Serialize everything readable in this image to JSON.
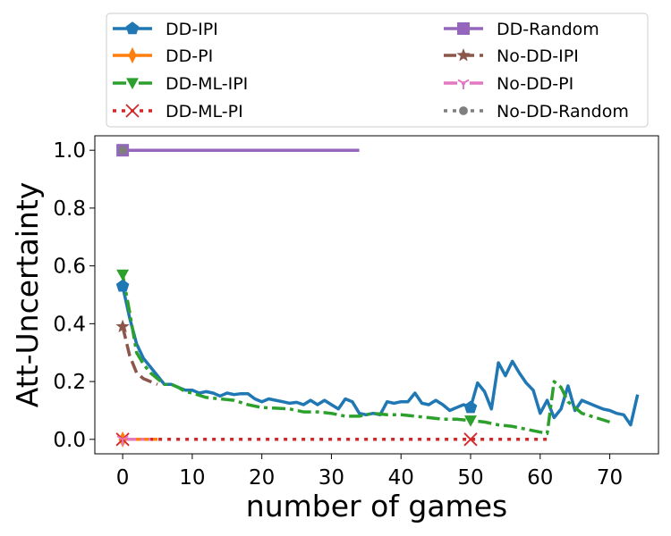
{
  "chart_data": {
    "type": "line",
    "title": "",
    "xlabel": "number of games",
    "ylabel": "Att-Uncertainty",
    "xlim": [
      -4,
      77
    ],
    "ylim": [
      -0.05,
      1.05
    ],
    "xticks": [
      0,
      10,
      20,
      30,
      40,
      50,
      60,
      70
    ],
    "yticks": [
      0.0,
      0.2,
      0.4,
      0.6,
      0.8,
      1.0
    ],
    "xtick_labels": [
      "0",
      "10",
      "20",
      "30",
      "40",
      "50",
      "60",
      "70"
    ],
    "ytick_labels": [
      "0.0",
      "0.2",
      "0.4",
      "0.6",
      "0.8",
      "1.0"
    ],
    "grid": false,
    "legend_placement": "top, above plot, two columns",
    "series": [
      {
        "name": "DD-IPI",
        "color": "#1f77b4",
        "linestyle": "solid",
        "marker": "pentagon",
        "marker_every": 50,
        "x": [
          0,
          1,
          2,
          3,
          4,
          5,
          6,
          7,
          8,
          9,
          10,
          11,
          12,
          13,
          14,
          15,
          16,
          17,
          18,
          19,
          20,
          21,
          22,
          23,
          24,
          25,
          26,
          27,
          28,
          29,
          30,
          31,
          32,
          33,
          34,
          35,
          36,
          37,
          38,
          39,
          40,
          41,
          42,
          43,
          44,
          45,
          46,
          47,
          48,
          49,
          50,
          51,
          52,
          53,
          54,
          55,
          56,
          57,
          58,
          59,
          60,
          61,
          62,
          63,
          64,
          65,
          66,
          67,
          68,
          69,
          70,
          71,
          72,
          73,
          74
        ],
        "y": [
          0.53,
          0.42,
          0.33,
          0.28,
          0.25,
          0.22,
          0.19,
          0.19,
          0.18,
          0.17,
          0.17,
          0.16,
          0.165,
          0.16,
          0.15,
          0.16,
          0.155,
          0.158,
          0.158,
          0.14,
          0.13,
          0.14,
          0.135,
          0.13,
          0.125,
          0.128,
          0.12,
          0.135,
          0.12,
          0.135,
          0.12,
          0.105,
          0.14,
          0.13,
          0.09,
          0.085,
          0.09,
          0.085,
          0.13,
          0.125,
          0.13,
          0.13,
          0.16,
          0.125,
          0.12,
          0.135,
          0.12,
          0.1,
          0.11,
          0.12,
          0.11,
          0.195,
          0.165,
          0.105,
          0.265,
          0.22,
          0.27,
          0.23,
          0.195,
          0.17,
          0.09,
          0.135,
          0.075,
          0.105,
          0.185,
          0.1,
          0.135,
          0.125,
          0.115,
          0.105,
          0.1,
          0.09,
          0.085,
          0.05,
          0.155
        ]
      },
      {
        "name": "DD-PI",
        "color": "#ff7f0e",
        "linestyle": "solid",
        "marker": "thin-diamond",
        "marker_every": 50,
        "x": [
          0,
          1,
          2,
          3,
          4,
          5
        ],
        "y": [
          0,
          0,
          0,
          0,
          0,
          0
        ]
      },
      {
        "name": "DD-ML-IPI",
        "color": "#2ca02c",
        "linestyle": "dashdot",
        "marker": "triangle-down",
        "marker_every": 50,
        "x": [
          0,
          1,
          2,
          3,
          4,
          5,
          6,
          7,
          8,
          9,
          10,
          12,
          14,
          16,
          18,
          20,
          22,
          24,
          26,
          28,
          30,
          32,
          34,
          36,
          38,
          40,
          42,
          44,
          46,
          48,
          50,
          52,
          54,
          56,
          58,
          60,
          61,
          62,
          63,
          64,
          66,
          68,
          70
        ],
        "y": [
          0.57,
          0.44,
          0.3,
          0.26,
          0.23,
          0.21,
          0.19,
          0.19,
          0.18,
          0.165,
          0.16,
          0.145,
          0.14,
          0.135,
          0.12,
          0.11,
          0.108,
          0.105,
          0.095,
          0.095,
          0.09,
          0.08,
          0.08,
          0.09,
          0.085,
          0.085,
          0.08,
          0.075,
          0.07,
          0.07,
          0.065,
          0.06,
          0.05,
          0.045,
          0.035,
          0.025,
          0.02,
          0.2,
          0.18,
          0.13,
          0.09,
          0.075,
          0.06
        ]
      },
      {
        "name": "DD-ML-PI",
        "color": "#d62728",
        "linestyle": "dotted",
        "marker": "x",
        "marker_every": 50,
        "x": [
          0,
          10,
          20,
          30,
          40,
          50,
          61
        ],
        "y": [
          0,
          0,
          0,
          0,
          0,
          0,
          0
        ]
      },
      {
        "name": "DD-Random",
        "color": "#9467bd",
        "linestyle": "solid",
        "marker": "square",
        "marker_every": 50,
        "x": [
          0,
          10,
          20,
          30,
          34
        ],
        "y": [
          1.0,
          1.0,
          1.0,
          1.0,
          1.0
        ]
      },
      {
        "name": "No-DD-IPI",
        "color": "#8c564b",
        "linestyle": "dashed",
        "marker": "star",
        "marker_every": 50,
        "x": [
          0,
          1,
          2,
          3,
          4,
          5
        ],
        "y": [
          0.39,
          0.29,
          0.23,
          0.21,
          0.2,
          0.19
        ]
      },
      {
        "name": "No-DD-PI",
        "color": "#e377c2",
        "linestyle": "dashdot",
        "marker": "tri-down",
        "marker_every": 50,
        "x": [
          0,
          1,
          2,
          3,
          4
        ],
        "y": [
          0,
          0,
          0,
          0,
          0
        ]
      },
      {
        "name": "No-DD-Random",
        "color": "#7f7f7f",
        "linestyle": "dotted",
        "marker": "circle",
        "marker_every": 50,
        "x": [
          0,
          1
        ],
        "y": [
          1.0,
          1.0
        ]
      }
    ]
  }
}
